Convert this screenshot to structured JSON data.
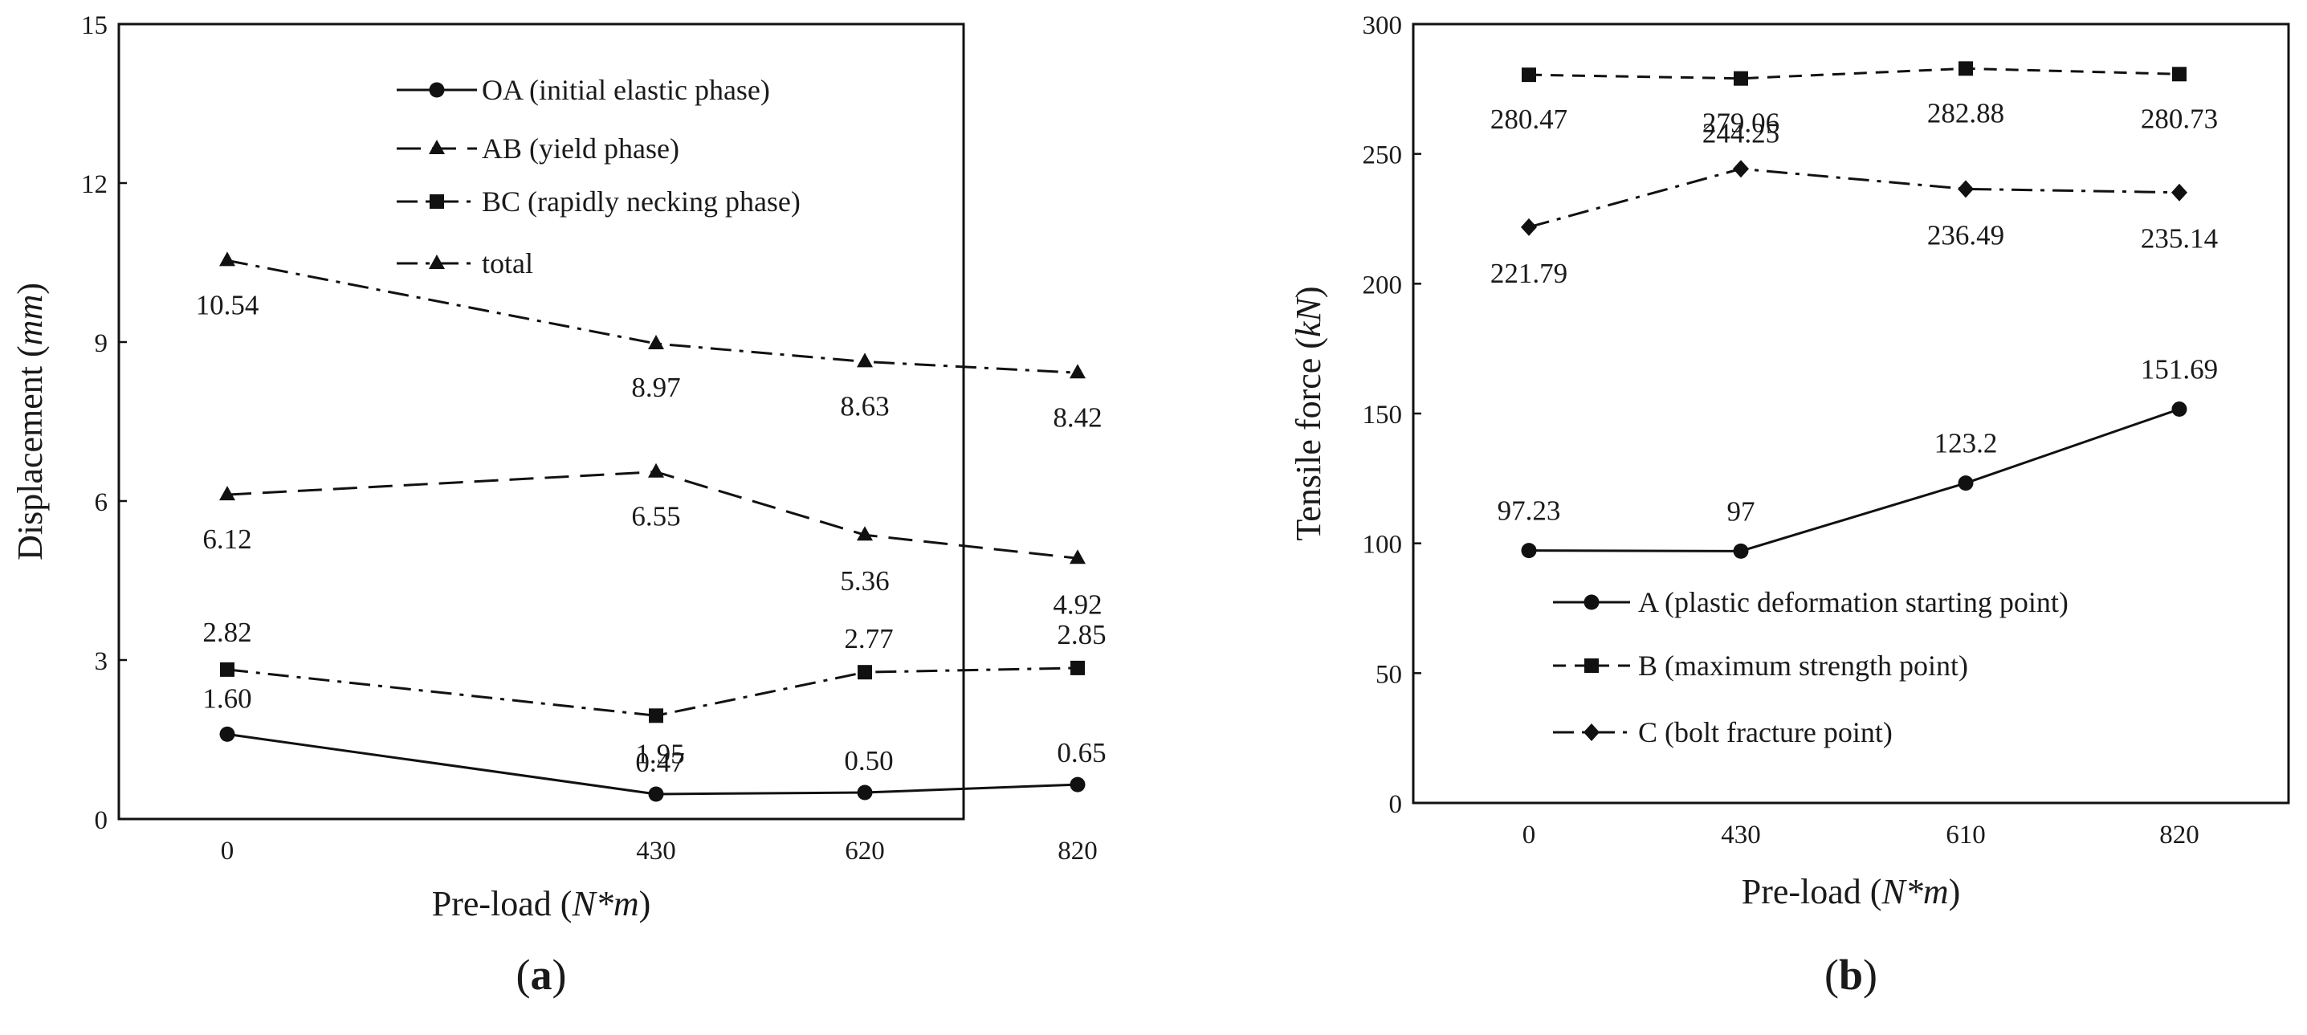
{
  "chart_data": [
    {
      "id": "a",
      "type": "line",
      "panel_label": {
        "open": "(",
        "letter": "a",
        "close": ")"
      },
      "categories": [
        "0",
        "430",
        "620",
        "820"
      ],
      "xlabel": {
        "pre": "Pre-load (",
        "italic": "N*m",
        "post": ")"
      },
      "ylabel": {
        "pre": "Displacement (",
        "italic": "mm",
        "post": ")"
      },
      "ylim": [
        0,
        15
      ],
      "yticks": [
        0,
        3,
        6,
        9,
        12,
        15
      ],
      "legend_position": "top-right",
      "series": [
        {
          "name": "OA (initial elastic phase)",
          "marker": "circle",
          "dash": "solid",
          "values": [
            1.6,
            0.47,
            0.5,
            0.65
          ],
          "labels": [
            "1.60",
            "0.47",
            "0.50",
            "0.65"
          ]
        },
        {
          "name": "AB (yield phase)",
          "marker": "triangle",
          "dash": "long-dash",
          "values": [
            6.12,
            6.55,
            5.36,
            4.92
          ],
          "labels": [
            "6.12",
            "6.55",
            "5.36",
            "4.92"
          ]
        },
        {
          "name": "BC (rapidly necking phase)",
          "marker": "square",
          "dash": "dash-dot",
          "values": [
            2.82,
            1.95,
            2.77,
            2.85
          ],
          "labels": [
            "2.82",
            "1.95",
            "2.77",
            "2.85"
          ]
        },
        {
          "name": "total",
          "marker": "triangle",
          "dash": "dash-dot",
          "values": [
            10.54,
            8.97,
            8.63,
            8.42
          ],
          "labels": [
            "10.54",
            "8.97",
            "8.63",
            "8.42"
          ]
        }
      ]
    },
    {
      "id": "b",
      "type": "line",
      "panel_label": {
        "open": "(",
        "letter": "b",
        "close": ")"
      },
      "categories": [
        "0",
        "430",
        "610",
        "820"
      ],
      "xlabel": {
        "pre": "Pre-load (",
        "italic": "N*m",
        "post": ")"
      },
      "ylabel": {
        "pre": "Tensile force (",
        "italic": "kN",
        "post": ")"
      },
      "ylim": [
        0,
        300
      ],
      "yticks": [
        0,
        50,
        100,
        150,
        200,
        250,
        300
      ],
      "legend_position": "bottom-right",
      "series": [
        {
          "name": "A (plastic deformation starting point)",
          "marker": "circle",
          "dash": "solid",
          "values": [
            97.23,
            97,
            123.2,
            151.69
          ],
          "labels": [
            "97.23",
            "97",
            "123.2",
            "151.69"
          ]
        },
        {
          "name": "B (maximum strength point)",
          "marker": "square",
          "dash": "short-dash",
          "values": [
            280.47,
            279.06,
            282.88,
            280.73
          ],
          "labels": [
            "280.47",
            "279.06",
            "282.88",
            "280.73"
          ]
        },
        {
          "name": "C (bolt fracture point)",
          "marker": "diamond",
          "dash": "dash-dot",
          "values": [
            221.79,
            244.25,
            236.49,
            235.14
          ],
          "labels": [
            "221.79",
            "244.25",
            "236.49",
            "235.14"
          ]
        }
      ]
    }
  ]
}
